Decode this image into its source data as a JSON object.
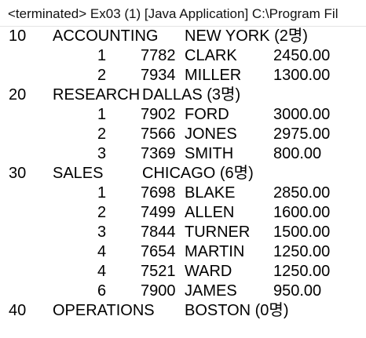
{
  "console": {
    "title": "<terminated> Ex03 (1) [Java Application] C:\\Program Fil"
  },
  "output": {
    "dept10": {
      "deptno": "10",
      "dname": "ACCOUNTING",
      "loc": "NEW YORK (2명)",
      "rows": [
        {
          "num": "1",
          "empno": "7782",
          "ename": "CLARK",
          "sal": "2450.00"
        },
        {
          "num": "2",
          "empno": "7934",
          "ename": "MILLER",
          "sal": "1300.00"
        }
      ]
    },
    "dept20": {
      "deptno": "20",
      "dname": "RESEARCH",
      "loc": "DALLAS (3명)",
      "rows": [
        {
          "num": "1",
          "empno": "7902",
          "ename": "FORD",
          "sal": "3000.00"
        },
        {
          "num": "2",
          "empno": "7566",
          "ename": "JONES",
          "sal": "2975.00"
        },
        {
          "num": "3",
          "empno": "7369",
          "ename": "SMITH",
          "sal": "800.00"
        }
      ]
    },
    "dept30": {
      "deptno": "30",
      "dname": "SALES",
      "loc": "CHICAGO (6명)",
      "rows": [
        {
          "num": "1",
          "empno": "7698",
          "ename": "BLAKE",
          "sal": "2850.00"
        },
        {
          "num": "2",
          "empno": "7499",
          "ename": "ALLEN",
          "sal": "1600.00"
        },
        {
          "num": "3",
          "empno": "7844",
          "ename": "TURNER",
          "sal": "1500.00"
        },
        {
          "num": "4",
          "empno": "7654",
          "ename": "MARTIN",
          "sal": "1250.00"
        },
        {
          "num": "4",
          "empno": "7521",
          "ename": "WARD",
          "sal": "1250.00"
        },
        {
          "num": "6",
          "empno": "7900",
          "ename": "JAMES",
          "sal": "950.00"
        }
      ]
    },
    "dept40": {
      "deptno": "40",
      "dname": "OPERATIONS",
      "loc": "BOSTON (0명)",
      "rows": []
    }
  }
}
